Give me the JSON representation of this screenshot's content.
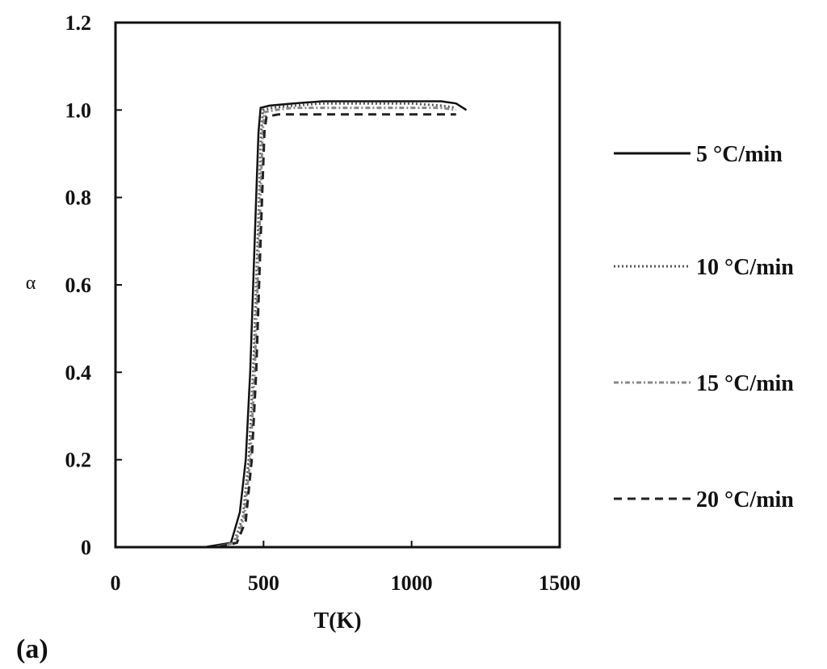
{
  "chart_data": {
    "type": "line",
    "panel_label": "(a)",
    "xlabel": "T(K)",
    "ylabel": "α",
    "xlim": [
      0,
      1500
    ],
    "ylim": [
      0,
      1.2
    ],
    "x_ticks": [
      "0",
      "500",
      "1000",
      "1500"
    ],
    "y_ticks": [
      "0",
      "0.2",
      "0.4",
      "0.6",
      "0.8",
      "1.0",
      "1.2"
    ],
    "grid": false,
    "legend_position": "right",
    "series": [
      {
        "name": "5 °C/min",
        "style": "solid",
        "color": "#111111",
        "x": [
          300,
          390,
          420,
          440,
          455,
          465,
          475,
          483,
          490,
          520,
          600,
          700,
          800,
          900,
          1000,
          1100,
          1150,
          1185
        ],
        "y": [
          0.0,
          0.01,
          0.08,
          0.2,
          0.4,
          0.6,
          0.8,
          0.95,
          1.005,
          1.01,
          1.015,
          1.02,
          1.02,
          1.02,
          1.02,
          1.02,
          1.015,
          1.0
        ]
      },
      {
        "name": "10 °C/min",
        "style": "dotted",
        "color": "#555555",
        "x": [
          330,
          400,
          430,
          450,
          465,
          475,
          485,
          492,
          498,
          530,
          600,
          700,
          800,
          900,
          1000,
          1100,
          1150
        ],
        "y": [
          0.0,
          0.01,
          0.07,
          0.2,
          0.4,
          0.6,
          0.8,
          0.95,
          1.0,
          1.005,
          1.01,
          1.015,
          1.015,
          1.015,
          1.015,
          1.01,
          1.005
        ]
      },
      {
        "name": "15 °C/min",
        "style": "dash-dot",
        "color": "#888888",
        "x": [
          340,
          405,
          435,
          455,
          470,
          480,
          490,
          497,
          503,
          540,
          600,
          700,
          800,
          900,
          1000,
          1100,
          1150
        ],
        "y": [
          0.0,
          0.01,
          0.07,
          0.2,
          0.4,
          0.6,
          0.8,
          0.95,
          0.995,
          1.0,
          1.005,
          1.005,
          1.005,
          1.005,
          1.005,
          1.005,
          1.0
        ]
      },
      {
        "name": "20 °C/min",
        "style": "dashed",
        "color": "#222222",
        "x": [
          350,
          410,
          440,
          460,
          475,
          485,
          495,
          503,
          510,
          550,
          600,
          700,
          800,
          900,
          1000,
          1100,
          1150
        ],
        "y": [
          0.0,
          0.01,
          0.06,
          0.2,
          0.4,
          0.6,
          0.8,
          0.95,
          0.985,
          0.99,
          0.99,
          0.99,
          0.99,
          0.99,
          0.99,
          0.99,
          0.99
        ]
      }
    ]
  }
}
